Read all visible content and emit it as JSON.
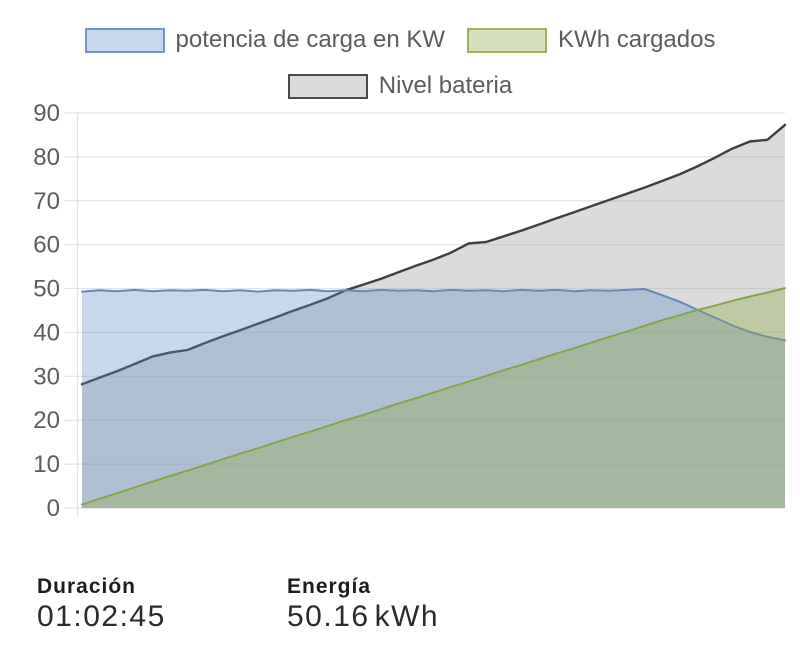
{
  "legend": {
    "items": [
      {
        "label": "potencia de carga en KW",
        "series": "power",
        "swatch_fill": "#c8d8ec",
        "swatch_border": "#6f96c6"
      },
      {
        "label": "KWh cargados",
        "series": "energy",
        "swatch_fill": "#d5e0ba",
        "swatch_border": "#9ab45e"
      },
      {
        "label": "Nivel bateria",
        "series": "battery",
        "swatch_fill": "#dbdbdb",
        "swatch_border": "#4a4a4a"
      }
    ]
  },
  "stats": [
    {
      "label": "Duración",
      "value": "01:02:45",
      "unit": ""
    },
    {
      "label": "Energía",
      "value": "50.16",
      "unit": "kWh"
    }
  ],
  "chart_data": {
    "type": "area",
    "title": "",
    "xlabel": "",
    "ylabel": "",
    "ylim": [
      0,
      90
    ],
    "yticks": [
      0,
      10,
      20,
      30,
      40,
      50,
      60,
      70,
      80,
      90
    ],
    "grid": true,
    "legend_position": "top",
    "x_unit": "percent_of_session",
    "x_tick_labels_visible": false,
    "x": [
      0,
      2.5,
      5,
      7.5,
      10,
      12.5,
      15,
      17.5,
      20,
      22.5,
      25,
      27.5,
      30,
      32.5,
      35,
      37.5,
      40,
      42.5,
      45,
      47.5,
      50,
      52.5,
      55,
      57.5,
      60,
      62.5,
      65,
      67.5,
      70,
      72.5,
      75,
      77.5,
      80,
      82.5,
      85,
      87.5,
      90,
      92.5,
      95,
      97.5,
      100
    ],
    "series": [
      {
        "name": "Nivel bateria",
        "key": "battery",
        "stroke": "#3f3f3f",
        "fill": "rgba(176,176,176,0.45)",
        "stroke_width": 2.4,
        "values": [
          28.2,
          29.7,
          31.2,
          32.8,
          34.5,
          35.4,
          36.0,
          37.6,
          39.1,
          40.5,
          42.0,
          43.4,
          44.9,
          46.3,
          47.8,
          49.6,
          50.9,
          52.2,
          53.7,
          55.2,
          56.6,
          58.2,
          60.3,
          60.6,
          61.9,
          63.2,
          64.6,
          66.0,
          67.4,
          68.8,
          70.2,
          71.6,
          73.0,
          74.5,
          76.0,
          77.8,
          79.8,
          81.9,
          83.5,
          83.9,
          87.3
        ]
      },
      {
        "name": "potencia de carga en KW",
        "key": "power",
        "stroke": "#6189bd",
        "fill": "rgba(94,141,200,0.34)",
        "stroke_width": 2,
        "values": [
          49.3,
          49.6,
          49.4,
          49.7,
          49.4,
          49.6,
          49.5,
          49.7,
          49.4,
          49.6,
          49.3,
          49.6,
          49.5,
          49.7,
          49.4,
          49.6,
          49.4,
          49.7,
          49.5,
          49.6,
          49.4,
          49.7,
          49.5,
          49.6,
          49.4,
          49.7,
          49.5,
          49.7,
          49.4,
          49.6,
          49.5,
          49.7,
          49.9,
          48.5,
          47.0,
          45.2,
          43.4,
          41.6,
          40.1,
          39.0,
          38.2
        ]
      },
      {
        "name": "KWh cargados",
        "key": "energy",
        "stroke": "#84a54c",
        "fill": "rgba(140,170,65,0.36)",
        "stroke_width": 2,
        "values": [
          0.8,
          2.1,
          3.4,
          4.7,
          6.0,
          7.3,
          8.5,
          9.8,
          11.1,
          12.4,
          13.6,
          14.9,
          16.2,
          17.4,
          18.7,
          20.0,
          21.2,
          22.5,
          23.8,
          25.0,
          26.3,
          27.6,
          28.8,
          30.1,
          31.4,
          32.6,
          33.9,
          35.2,
          36.4,
          37.7,
          39.0,
          40.2,
          41.5,
          42.8,
          43.9,
          45.1,
          46.1,
          47.2,
          48.2,
          49.1,
          50.1
        ]
      }
    ]
  }
}
